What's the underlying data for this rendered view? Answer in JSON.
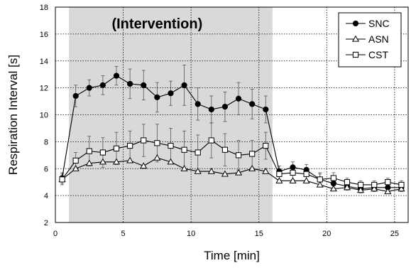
{
  "chart_data": {
    "type": "line",
    "xlabel": "Time [min]",
    "ylabel": "Respiration Interval  [s]",
    "xlim": [
      0,
      26
    ],
    "ylim": [
      2,
      18
    ],
    "xticks": [
      0,
      5,
      10,
      15,
      20,
      25
    ],
    "yticks": [
      2,
      4,
      6,
      8,
      10,
      12,
      14,
      16,
      18
    ],
    "grid": true,
    "legend_position": "top-right",
    "annotation": {
      "text": "(Intervention)",
      "shaded_region_x": [
        1,
        16
      ]
    },
    "x": [
      0.5,
      1.5,
      2.5,
      3.5,
      4.5,
      5.5,
      6.5,
      7.5,
      8.5,
      9.5,
      10.5,
      11.5,
      12.5,
      13.5,
      14.5,
      15.5,
      16.5,
      17.5,
      18.5,
      19.5,
      20.5,
      21.5,
      22.5,
      23.5,
      24.5,
      25.5
    ],
    "series": [
      {
        "name": "SNC",
        "marker": "circle-filled",
        "color": "#000000",
        "values": [
          5.3,
          11.4,
          12.0,
          12.2,
          12.9,
          12.3,
          12.2,
          11.3,
          11.6,
          12.2,
          10.8,
          10.4,
          10.6,
          11.2,
          10.8,
          10.4,
          5.8,
          6.1,
          5.9,
          5.2,
          4.9,
          4.7,
          4.5,
          4.6,
          4.6,
          4.6
        ],
        "errors": [
          0.4,
          0.8,
          0.6,
          0.7,
          0.7,
          1.1,
          1.1,
          1.1,
          0.9,
          1.5,
          1.2,
          1.0,
          1.1,
          1.2,
          1.1,
          1.0,
          0.4,
          0.4,
          0.4,
          0.4,
          0.3,
          0.3,
          0.3,
          0.3,
          0.3,
          0.3
        ]
      },
      {
        "name": "ASN",
        "marker": "triangle-open",
        "color": "#000000",
        "values": [
          5.2,
          6.0,
          6.4,
          6.5,
          6.5,
          6.6,
          6.2,
          6.8,
          6.5,
          6.0,
          5.8,
          5.8,
          5.6,
          5.7,
          6.0,
          5.8,
          5.1,
          5.1,
          5.1,
          4.8,
          4.5,
          4.6,
          4.4,
          4.5,
          4.3,
          4.5
        ]
      },
      {
        "name": "CST",
        "marker": "square-open",
        "color": "#000000",
        "values": [
          5.2,
          6.6,
          7.3,
          7.2,
          7.5,
          7.7,
          8.1,
          7.9,
          7.7,
          7.4,
          7.2,
          8.1,
          7.4,
          7.0,
          7.1,
          7.7,
          5.6,
          5.7,
          5.6,
          5.2,
          5.3,
          5.0,
          4.8,
          4.8,
          5.0,
          4.8
        ],
        "errors": [
          0.4,
          0.6,
          1.1,
          1.1,
          1.2,
          1.1,
          1.2,
          1.4,
          1.3,
          1.4,
          1.3,
          1.3,
          1.2,
          1.1,
          1.0,
          1.0,
          0.4,
          0.5,
          0.5,
          0.5,
          0.4,
          0.3,
          0.3,
          0.3,
          0.3,
          0.3
        ]
      }
    ]
  }
}
